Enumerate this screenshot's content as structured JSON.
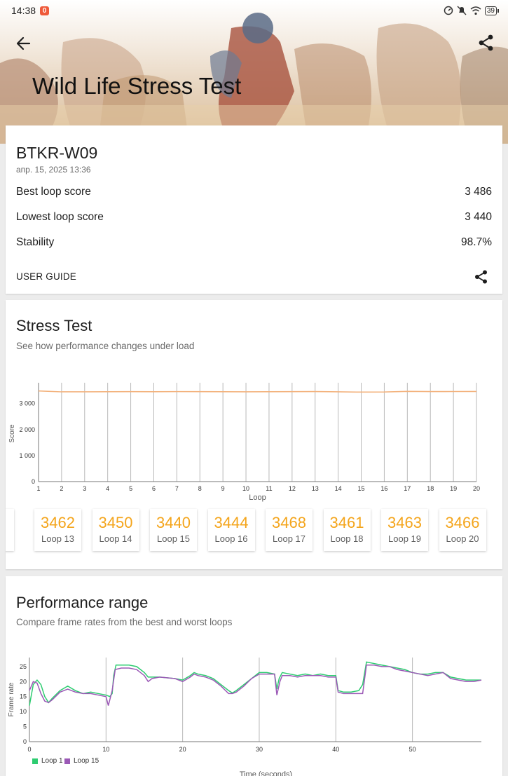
{
  "status_bar": {
    "time": "14:38",
    "notification_count": "0",
    "battery": "39"
  },
  "header": {
    "title": "Wild Life Stress Test"
  },
  "summary": {
    "device": "BTKR-W09",
    "date": "апр. 15, 2025 13:36",
    "rows": [
      {
        "label": "Best loop score",
        "value": "3 486"
      },
      {
        "label": "Lowest loop score",
        "value": "3 440"
      },
      {
        "label": "Stability",
        "value": "98.7%"
      }
    ],
    "user_guide": "USER GUIDE"
  },
  "stress": {
    "title": "Stress Test",
    "subtitle": "See how performance changes under load",
    "loops": [
      {
        "score": "3462",
        "label": "Loop 13"
      },
      {
        "score": "3450",
        "label": "Loop 14"
      },
      {
        "score": "3440",
        "label": "Loop 15"
      },
      {
        "score": "3444",
        "label": "Loop 16"
      },
      {
        "score": "3468",
        "label": "Loop 17"
      },
      {
        "score": "3461",
        "label": "Loop 18"
      },
      {
        "score": "3463",
        "label": "Loop 19"
      },
      {
        "score": "3466",
        "label": "Loop 20"
      }
    ]
  },
  "perf": {
    "title": "Performance range",
    "subtitle": "Compare frame rates from the best and worst loops",
    "legend": [
      "Loop 1",
      "Loop 15"
    ]
  },
  "colors": {
    "accent": "#f4a51c",
    "line": "#f3b37e",
    "loop1": "#2ecc71",
    "loop15": "#9b59b6"
  },
  "chart_data": [
    {
      "type": "line",
      "title": "",
      "xlabel": "Loop",
      "ylabel": "Score",
      "x": [
        1,
        2,
        3,
        4,
        5,
        6,
        7,
        8,
        9,
        10,
        11,
        12,
        13,
        14,
        15,
        16,
        17,
        18,
        19,
        20
      ],
      "series": [
        {
          "values": [
            3486,
            3450,
            3452,
            3455,
            3458,
            3454,
            3460,
            3458,
            3456,
            3452,
            3455,
            3457,
            3462,
            3450,
            3440,
            3444,
            3468,
            3461,
            3463,
            3466
          ]
        }
      ],
      "yticks": [
        "0",
        "1 000",
        "2 000",
        "3 000"
      ],
      "ylim": [
        0,
        3800
      ],
      "xlim": [
        1,
        20
      ],
      "grid": true
    },
    {
      "type": "line",
      "title": "",
      "xlabel": "Time (seconds)",
      "ylabel": "Frame rate",
      "xticks": [
        0,
        10,
        20,
        30,
        40,
        50
      ],
      "yticks": [
        0,
        5,
        10,
        15,
        20,
        25
      ],
      "ylim": [
        0,
        28
      ],
      "xlim": [
        0,
        59
      ],
      "grid": true,
      "legend_position": "bottom-left",
      "series": [
        {
          "name": "Loop 1",
          "points": [
            [
              0,
              12
            ],
            [
              0.5,
              19
            ],
            [
              1,
              20.5
            ],
            [
              1.5,
              19
            ],
            [
              2,
              15
            ],
            [
              2.5,
              13
            ],
            [
              3,
              14.5
            ],
            [
              4,
              17
            ],
            [
              5,
              18.5
            ],
            [
              6,
              17
            ],
            [
              7,
              16
            ],
            [
              8,
              16.5
            ],
            [
              9,
              16
            ],
            [
              10,
              15.5
            ],
            [
              10.5,
              15
            ],
            [
              10.8,
              16
            ],
            [
              11,
              22
            ],
            [
              11.3,
              25.5
            ],
            [
              13,
              25.5
            ],
            [
              14,
              25
            ],
            [
              15,
              23
            ],
            [
              15.5,
              21.5
            ],
            [
              17,
              21.5
            ],
            [
              19,
              21
            ],
            [
              20,
              20.5
            ],
            [
              21,
              22
            ],
            [
              21.5,
              23
            ],
            [
              22,
              22.5
            ],
            [
              23,
              22
            ],
            [
              24,
              21
            ],
            [
              25,
              19
            ],
            [
              26,
              17
            ],
            [
              26.5,
              16.2
            ],
            [
              27,
              17
            ],
            [
              28,
              19
            ],
            [
              29,
              21
            ],
            [
              30,
              23
            ],
            [
              31,
              23
            ],
            [
              32,
              22.5
            ],
            [
              32.3,
              17.5
            ],
            [
              32.6,
              21
            ],
            [
              33,
              23
            ],
            [
              34,
              22.5
            ],
            [
              35,
              22
            ],
            [
              36,
              22.5
            ],
            [
              37,
              22
            ],
            [
              38,
              22.5
            ],
            [
              39,
              22
            ],
            [
              40,
              22
            ],
            [
              40.3,
              17
            ],
            [
              41,
              16.5
            ],
            [
              42,
              16.5
            ],
            [
              43,
              17
            ],
            [
              43.5,
              19
            ],
            [
              44,
              26.5
            ],
            [
              45,
              26
            ],
            [
              46,
              25.5
            ],
            [
              47,
              25
            ],
            [
              48,
              24.5
            ],
            [
              49,
              24
            ],
            [
              50,
              23
            ],
            [
              51,
              22.5
            ],
            [
              52,
              22.5
            ],
            [
              53,
              23
            ],
            [
              54,
              23
            ],
            [
              55,
              21.5
            ],
            [
              56,
              21
            ],
            [
              57,
              20.5
            ],
            [
              58,
              20.5
            ],
            [
              59,
              20.5
            ]
          ]
        },
        {
          "name": "Loop 15",
          "points": [
            [
              0,
              17
            ],
            [
              0.5,
              20
            ],
            [
              1,
              19.5
            ],
            [
              1.5,
              16
            ],
            [
              2,
              13.5
            ],
            [
              2.5,
              13
            ],
            [
              3,
              14
            ],
            [
              4,
              16.5
            ],
            [
              5,
              17.5
            ],
            [
              6,
              16.5
            ],
            [
              7,
              16
            ],
            [
              8,
              16
            ],
            [
              9,
              15.5
            ],
            [
              10,
              15
            ],
            [
              10.3,
              12
            ],
            [
              10.8,
              17
            ],
            [
              11.2,
              24
            ],
            [
              12,
              24.5
            ],
            [
              13,
              24.5
            ],
            [
              14,
              24
            ],
            [
              15,
              22
            ],
            [
              15.5,
              20
            ],
            [
              16,
              21
            ],
            [
              17,
              21.5
            ],
            [
              19,
              21
            ],
            [
              20,
              20
            ],
            [
              21,
              21.5
            ],
            [
              21.5,
              22.5
            ],
            [
              22,
              22
            ],
            [
              23,
              21.5
            ],
            [
              24,
              20.5
            ],
            [
              25,
              18.5
            ],
            [
              26,
              16
            ],
            [
              26.5,
              16
            ],
            [
              27,
              16.5
            ],
            [
              28,
              18.5
            ],
            [
              29,
              21
            ],
            [
              30,
              22.5
            ],
            [
              31,
              22.5
            ],
            [
              32,
              22.5
            ],
            [
              32.3,
              15.5
            ],
            [
              32.7,
              20
            ],
            [
              33,
              22
            ],
            [
              34,
              22
            ],
            [
              35,
              21.5
            ],
            [
              36,
              22
            ],
            [
              37,
              22
            ],
            [
              38,
              22
            ],
            [
              39,
              21.5
            ],
            [
              40,
              21.5
            ],
            [
              40.3,
              16.5
            ],
            [
              41,
              16
            ],
            [
              42,
              16
            ],
            [
              43,
              16
            ],
            [
              43.5,
              16
            ],
            [
              44,
              25.5
            ],
            [
              45,
              25.5
            ],
            [
              46,
              25
            ],
            [
              47,
              25
            ],
            [
              48,
              24
            ],
            [
              49,
              23.5
            ],
            [
              50,
              23
            ],
            [
              51,
              22.5
            ],
            [
              52,
              22
            ],
            [
              53,
              22.5
            ],
            [
              54,
              23
            ],
            [
              55,
              21
            ],
            [
              56,
              20.5
            ],
            [
              57,
              20
            ],
            [
              58,
              20
            ],
            [
              59,
              20.5
            ]
          ]
        }
      ]
    }
  ]
}
